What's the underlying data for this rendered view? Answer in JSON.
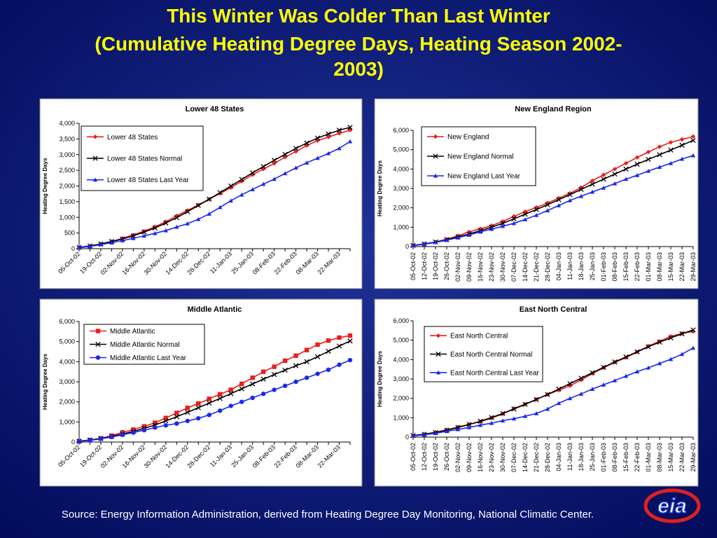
{
  "title": "This Winter Was Colder Than Last Winter",
  "subtitle": "(Cumulative Heating Degree Days, Heating Season 2002-2003)",
  "source": "Source: Energy Information Administration, derived from Heating Degree Day Monitoring, National Climatic Center.",
  "logo_text": "eia",
  "chart_data": [
    {
      "type": "line",
      "title": "Lower 48 States",
      "y_label": "Heating Degree Days",
      "categories": [
        "05-Oct-02",
        null,
        "19-Oct-02",
        null,
        "02-Nov-02",
        null,
        "16-Nov-02",
        null,
        "30-Nov-02",
        null,
        "14-Dec-02",
        null,
        "28-Dec-02",
        null,
        "11-Jan-03",
        null,
        "25-Jan-03",
        null,
        "08-Feb-03",
        null,
        "22-Feb-03",
        null,
        "08-Mar-03",
        null,
        "22-Mar-03",
        null
      ],
      "ylim": [
        0,
        4000
      ],
      "yticks": [
        0,
        500,
        {
          "value": 1000,
          "label": "1,000"
        },
        {
          "value": 1500,
          "label": "1,500"
        },
        {
          "value": 2000,
          "label": "2,000"
        },
        {
          "value": 2500,
          "label": "2,500"
        },
        {
          "value": 3000,
          "label": "3,000"
        },
        {
          "value": 3500,
          "label": "3,500"
        },
        {
          "value": 4000,
          "label": "4,000"
        }
      ],
      "grid": false,
      "series": [
        {
          "name": "Lower 48 States",
          "color": "#ee1c1c",
          "marker": "diamond",
          "values": [
            40,
            80,
            150,
            230,
            330,
            440,
            560,
            700,
            860,
            1050,
            1220,
            1400,
            1580,
            1760,
            1950,
            2150,
            2360,
            2540,
            2720,
            2920,
            3100,
            3290,
            3450,
            3560,
            3680,
            3780
          ]
        },
        {
          "name": "Lower 48 States Normal",
          "color": "#000000",
          "marker": "x",
          "values": [
            40,
            90,
            150,
            230,
            310,
            410,
            530,
            660,
            820,
            990,
            1180,
            1380,
            1580,
            1790,
            2000,
            2210,
            2420,
            2620,
            2820,
            3010,
            3200,
            3370,
            3530,
            3660,
            3780,
            3870
          ]
        },
        {
          "name": "Lower 48 States Last Year",
          "color": "#1c28ee",
          "marker": "triangle",
          "values": [
            30,
            70,
            130,
            190,
            260,
            330,
            410,
            490,
            580,
            690,
            800,
            940,
            1110,
            1320,
            1530,
            1720,
            1890,
            2060,
            2220,
            2400,
            2580,
            2740,
            2890,
            3040,
            3200,
            3420
          ]
        }
      ]
    },
    {
      "type": "line",
      "title": "New England Region",
      "y_label": "Heating Degree Days",
      "categories": [
        "05-Oct-02",
        "12-Oct-02",
        "19-Oct-02",
        "26-Oct-02",
        "02-Nov-02",
        "09-Nov-02",
        "16-Nov-02",
        "23-Nov-02",
        "30-Nov-02",
        "07-Dec-02",
        "14-Dec-02",
        "21-Dec-02",
        "28-Dec-02",
        "04-Jan-03",
        "11-Jan-03",
        "18-Jan-03",
        "25-Jan-03",
        "01-Feb-03",
        "08-Feb-03",
        "15-Feb-03",
        "22-Feb-03",
        "01-Mar-03",
        "08-Mar-03",
        "15-Mar-03",
        "22-Mar-03",
        "29-Mar-03"
      ],
      "ylim": [
        0,
        6000
      ],
      "yticks": [
        0,
        {
          "value": 1000,
          "label": "1,000"
        },
        {
          "value": 2000,
          "label": "2,000"
        },
        {
          "value": 3000,
          "label": "3,000"
        },
        {
          "value": 4000,
          "label": "4,000"
        },
        {
          "value": 5000,
          "label": "5,000"
        },
        {
          "value": 6000,
          "label": "6,000"
        }
      ],
      "grid": false,
      "series": [
        {
          "name": "New England",
          "color": "#ee1c1c",
          "marker": "diamond",
          "values": [
            60,
            130,
            230,
            380,
            560,
            760,
            920,
            1080,
            1300,
            1560,
            1800,
            2020,
            2250,
            2500,
            2750,
            3050,
            3400,
            3700,
            4000,
            4300,
            4600,
            4880,
            5150,
            5380,
            5530,
            5680
          ]
        },
        {
          "name": "New England Normal",
          "color": "#000000",
          "marker": "x",
          "values": [
            60,
            140,
            240,
            360,
            500,
            650,
            820,
            1000,
            1200,
            1430,
            1670,
            1910,
            2160,
            2420,
            2680,
            2950,
            3220,
            3480,
            3740,
            4000,
            4250,
            4500,
            4740,
            4980,
            5230,
            5480
          ]
        },
        {
          "name": "New England Last Year",
          "color": "#1c28ee",
          "marker": "triangle",
          "values": [
            50,
            120,
            220,
            330,
            460,
            600,
            760,
            900,
            1050,
            1200,
            1400,
            1620,
            1860,
            2120,
            2380,
            2600,
            2820,
            3030,
            3250,
            3480,
            3680,
            3900,
            4100,
            4300,
            4520,
            4700
          ]
        }
      ]
    },
    {
      "type": "line",
      "title": "Middle Atlantic",
      "y_label": "Heating Degree Days",
      "categories": [
        "05-Oct-02",
        null,
        "19-Oct-02",
        null,
        "02-Nov-02",
        null,
        "16-Nov-02",
        null,
        "30-Nov-02",
        null,
        "14-Dec-02",
        null,
        "28-Dec-02",
        null,
        "11-Jan-03",
        null,
        "25-Jan-03",
        null,
        "08-Feb-03",
        null,
        "22-Feb-03",
        null,
        "08-Mar-03",
        null,
        "22-Mar-03",
        null
      ],
      "ylim": [
        0,
        6000
      ],
      "yticks": [
        0,
        {
          "value": 1000,
          "label": "1,000"
        },
        {
          "value": 2000,
          "label": "2,000"
        },
        {
          "value": 3000,
          "label": "3,000"
        },
        {
          "value": 4000,
          "label": "4,000"
        },
        {
          "value": 5000,
          "label": "5,000"
        },
        {
          "value": 6000,
          "label": "6,000"
        }
      ],
      "grid": false,
      "series": [
        {
          "name": "Middle Atlantic",
          "color": "#ee1c1c",
          "marker": "square",
          "values": [
            40,
            100,
            180,
            320,
            480,
            620,
            780,
            960,
            1200,
            1450,
            1700,
            1920,
            2150,
            2380,
            2600,
            2900,
            3200,
            3500,
            3750,
            4050,
            4300,
            4580,
            4850,
            5050,
            5200,
            5300
          ]
        },
        {
          "name": "Middle Atlantic Normal",
          "color": "#000000",
          "marker": "x",
          "values": [
            40,
            100,
            180,
            280,
            400,
            530,
            680,
            850,
            1050,
            1260,
            1480,
            1710,
            1940,
            2170,
            2410,
            2650,
            2890,
            3130,
            3360,
            3580,
            3800,
            4000,
            4250,
            4520,
            4780,
            5030
          ]
        },
        {
          "name": "Middle Atlantic Last Year",
          "color": "#1c28ee",
          "marker": "circle",
          "values": [
            30,
            80,
            160,
            250,
            360,
            470,
            590,
            720,
            830,
            920,
            1050,
            1180,
            1350,
            1560,
            1800,
            2000,
            2200,
            2400,
            2600,
            2800,
            3000,
            3200,
            3400,
            3600,
            3850,
            4080
          ]
        }
      ]
    },
    {
      "type": "line",
      "title": "East North Central",
      "y_label": "Heating Degree Days",
      "categories": [
        "05-Oct-02",
        "12-Oct-02",
        "19-Oct-02",
        "26-Oct-02",
        "02-Nov-02",
        "09-Nov-02",
        "16-Nov-02",
        "23-Nov-02",
        "30-Nov-02",
        "07-Dec-02",
        "14-Dec-02",
        "21-Dec-02",
        "28-Dec-02",
        "04-Jan-03",
        "11-Jan-03",
        "18-Jan-03",
        "25-Jan-03",
        "01-Feb-03",
        "08-Feb-03",
        "15-Feb-03",
        "22-Feb-03",
        "01-Mar-03",
        "08-Mar-03",
        "15-Mar-03",
        "22-Mar-03",
        "29-Mar-03"
      ],
      "ylim": [
        0,
        6000
      ],
      "yticks": [
        0,
        {
          "value": 1000,
          "label": "1,000"
        },
        {
          "value": 2000,
          "label": "2,000"
        },
        {
          "value": 3000,
          "label": "3,000"
        },
        {
          "value": 4000,
          "label": "4,000"
        },
        {
          "value": 5000,
          "label": "5,000"
        },
        {
          "value": 6000,
          "label": "6,000"
        }
      ],
      "grid": false,
      "series": [
        {
          "name": "East North Central",
          "color": "#ee1c1c",
          "marker": "diamond",
          "values": [
            80,
            150,
            250,
            380,
            520,
            660,
            800,
            980,
            1200,
            1480,
            1700,
            1950,
            2200,
            2420,
            2650,
            2950,
            3280,
            3580,
            3860,
            4100,
            4400,
            4700,
            4950,
            5200,
            5350,
            5450
          ]
        },
        {
          "name": "East North Central Normal",
          "color": "#000000",
          "marker": "x",
          "values": [
            80,
            150,
            240,
            360,
            500,
            650,
            820,
            1010,
            1220,
            1450,
            1690,
            1940,
            2200,
            2480,
            2760,
            3040,
            3320,
            3600,
            3880,
            4140,
            4400,
            4660,
            4900,
            5120,
            5330,
            5530
          ]
        },
        {
          "name": "East North Central Last Year",
          "color": "#1c28ee",
          "marker": "triangle",
          "values": [
            60,
            120,
            200,
            300,
            400,
            500,
            620,
            720,
            850,
            950,
            1080,
            1220,
            1450,
            1750,
            2000,
            2230,
            2480,
            2700,
            2920,
            3150,
            3380,
            3580,
            3800,
            4020,
            4280,
            4600
          ]
        }
      ]
    }
  ]
}
